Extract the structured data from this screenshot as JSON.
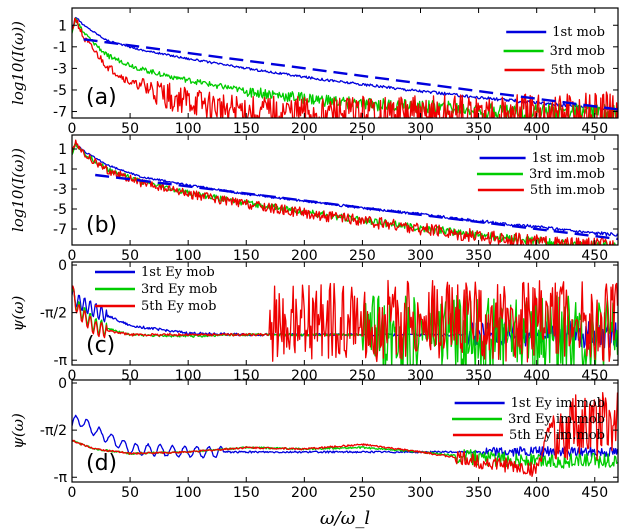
{
  "chart_data": [
    {
      "type": "line",
      "panel_label": "(a)",
      "ylabel": "log10(I(ω))",
      "xlim": [
        0,
        470
      ],
      "ylim": [
        -7.6,
        2.6
      ],
      "yticks": [
        1,
        -1,
        -3,
        -5,
        -7
      ],
      "yticklabels": [
        "1",
        "-1",
        "-3",
        "-5",
        "-7"
      ],
      "xticks": [
        0,
        50,
        100,
        150,
        200,
        250,
        300,
        350,
        400,
        450
      ],
      "xticklabels": [
        "0",
        "50",
        "100",
        "150",
        "200",
        "250",
        "300",
        "350",
        "400",
        "450"
      ],
      "legend_position": "top-right",
      "series": [
        {
          "name": "1st mob",
          "color": "#0000dd",
          "x": [
            0,
            3,
            10,
            30,
            60,
            100,
            150,
            200,
            250,
            300,
            350,
            400,
            450,
            470
          ],
          "y": [
            0.5,
            1.8,
            1.0,
            -0.4,
            -1.3,
            -2.1,
            -3.0,
            -3.8,
            -4.5,
            -5.1,
            -5.7,
            -6.2,
            -6.6,
            -6.8
          ]
        },
        {
          "name": "3rd mob",
          "color": "#00cc00",
          "x": [
            0,
            3,
            10,
            30,
            60,
            100,
            150,
            200,
            250,
            300,
            350,
            400,
            450,
            470
          ],
          "y": [
            0.3,
            1.6,
            0.3,
            -1.8,
            -3.1,
            -4.1,
            -5.1,
            -5.8,
            -6.3,
            -6.6,
            -6.8,
            -7.0,
            -7.1,
            -7.2
          ]
        },
        {
          "name": "5th mob",
          "color": "#ee0000",
          "x": [
            0,
            3,
            10,
            30,
            50,
            80,
            120,
            150,
            200,
            250,
            300,
            350,
            400,
            470
          ],
          "y": [
            0.5,
            1.7,
            -0.2,
            -2.8,
            -4.3,
            -5.5,
            -6.6,
            -7.0,
            -7.2,
            -7.3,
            -7.4,
            -7.4,
            -7.4,
            -7.4
          ]
        },
        {
          "name": "",
          "color": "#0000dd",
          "dashed": true,
          "x": [
            10,
            470
          ],
          "y": [
            -0.3,
            -6.8
          ]
        }
      ]
    },
    {
      "type": "line",
      "panel_label": "(b)",
      "ylabel": "log10(I(ω))",
      "xlim": [
        0,
        470
      ],
      "ylim": [
        -8.6,
        2.4
      ],
      "yticks": [
        1,
        -1,
        -3,
        -5,
        -7
      ],
      "yticklabels": [
        "1",
        "-1",
        "-3",
        "-5",
        "-7"
      ],
      "xticks": [
        0,
        50,
        100,
        150,
        200,
        250,
        300,
        350,
        400,
        450
      ],
      "xticklabels": [
        "0",
        "50",
        "100",
        "150",
        "200",
        "250",
        "300",
        "350",
        "400",
        "450"
      ],
      "legend_position": "top-right",
      "series": [
        {
          "name": "1st im.mob",
          "color": "#0000dd",
          "x": [
            0,
            3,
            10,
            30,
            60,
            100,
            150,
            200,
            250,
            300,
            350,
            400,
            450,
            470
          ],
          "y": [
            0.5,
            1.6,
            0.8,
            -0.6,
            -1.8,
            -2.6,
            -3.5,
            -4.2,
            -4.9,
            -5.5,
            -6.2,
            -6.8,
            -7.4,
            -7.6
          ]
        },
        {
          "name": "3rd im.mob",
          "color": "#00cc00",
          "x": [
            0,
            3,
            10,
            30,
            60,
            100,
            150,
            200,
            250,
            300,
            350,
            400,
            430,
            470
          ],
          "y": [
            0.5,
            1.6,
            0.6,
            -1.0,
            -2.3,
            -3.4,
            -4.4,
            -5.3,
            -6.1,
            -6.9,
            -7.6,
            -8.2,
            -8.6,
            -8.6
          ]
        },
        {
          "name": "5th im.mob",
          "color": "#ee0000",
          "x": [
            0,
            3,
            10,
            30,
            60,
            100,
            150,
            200,
            250,
            300,
            350,
            400,
            430,
            470
          ],
          "y": [
            0.5,
            1.6,
            0.5,
            -1.1,
            -2.4,
            -3.5,
            -4.5,
            -5.4,
            -6.2,
            -7.0,
            -7.7,
            -8.3,
            -8.6,
            -8.6
          ]
        },
        {
          "name": "",
          "color": "#0000dd",
          "dashed": true,
          "x": [
            20,
            470
          ],
          "y": [
            -1.6,
            -8.0
          ]
        }
      ]
    },
    {
      "type": "line",
      "panel_label": "(c)",
      "ylabel": "ψ(ω)",
      "xlim": [
        0,
        470
      ],
      "ylim": [
        -3.3,
        0.1
      ],
      "yticks": [
        0,
        -1.5708,
        -3.1416
      ],
      "yticklabels": [
        "0",
        "-π/2",
        "-π"
      ],
      "xticks": [
        0,
        50,
        100,
        150,
        200,
        250,
        300,
        350,
        400,
        450
      ],
      "xticklabels": [
        "0",
        "50",
        "100",
        "150",
        "200",
        "250",
        "300",
        "350",
        "400",
        "450"
      ],
      "legend_position": "top-left",
      "series": [
        {
          "name": "1st Ey mob",
          "color": "#0000dd",
          "x": [
            0,
            5,
            20,
            50,
            100,
            150,
            200,
            250,
            300,
            350,
            400,
            450,
            470
          ],
          "y": [
            -1.0,
            -1.2,
            -1.5,
            -2.0,
            -2.25,
            -2.3,
            -2.3,
            -2.3,
            -2.3,
            -2.3,
            -2.3,
            -2.3,
            -2.3
          ]
        },
        {
          "name": "3rd Ey mob",
          "color": "#00cc00",
          "x": [
            0,
            5,
            20,
            50,
            100,
            150,
            200,
            250,
            300,
            350,
            400,
            450,
            470
          ],
          "y": [
            -0.9,
            -1.4,
            -2.0,
            -2.3,
            -2.35,
            -2.3,
            -2.3,
            -2.3,
            -2.3,
            -2.3,
            -2.3,
            -2.3,
            -2.3
          ]
        },
        {
          "name": "5th Ey mob",
          "color": "#ee0000",
          "x": [
            0,
            5,
            20,
            50,
            100,
            150,
            200,
            250,
            300,
            350,
            400,
            450,
            470
          ],
          "y": [
            -0.8,
            -1.5,
            -2.1,
            -2.3,
            -2.3,
            -2.3,
            -2.3,
            -2.3,
            -2.3,
            -2.3,
            -2.3,
            -2.3,
            -2.3
          ]
        }
      ]
    },
    {
      "type": "line",
      "panel_label": "(d)",
      "ylabel": "ψ(ω)",
      "xlim": [
        0,
        470
      ],
      "ylim": [
        -3.3,
        0.1
      ],
      "yticks": [
        0,
        -1.5708,
        -3.1416
      ],
      "yticklabels": [
        "0",
        "-π/2",
        "-π"
      ],
      "xticks": [
        0,
        50,
        100,
        150,
        200,
        250,
        300,
        350,
        400,
        450
      ],
      "xticklabels": [
        "0",
        "50",
        "100",
        "150",
        "200",
        "250",
        "300",
        "350",
        "400",
        "450"
      ],
      "xlabel": "ω/ω_l",
      "legend_position": "top-right",
      "series": [
        {
          "name": "1st Ey im.mob",
          "color": "#0000dd",
          "x": [
            0,
            5,
            20,
            50,
            100,
            150,
            200,
            250,
            300,
            350,
            400,
            450,
            470
          ],
          "y": [
            -1.4,
            -1.2,
            -1.6,
            -2.2,
            -2.3,
            -2.3,
            -2.3,
            -2.3,
            -2.3,
            -2.3,
            -2.3,
            -2.3,
            -2.3
          ]
        },
        {
          "name": "3rd Ey im.mob",
          "color": "#00cc00",
          "x": [
            0,
            5,
            20,
            50,
            100,
            150,
            200,
            250,
            300,
            350,
            400,
            450,
            470
          ],
          "y": [
            -1.9,
            -2.0,
            -2.2,
            -2.35,
            -2.3,
            -2.15,
            -2.2,
            -2.15,
            -2.3,
            -2.5,
            -2.6,
            -2.6,
            -2.6
          ]
        },
        {
          "name": "5th Ey im.mob",
          "color": "#ee0000",
          "x": [
            0,
            5,
            20,
            50,
            100,
            150,
            200,
            250,
            300,
            350,
            400,
            420,
            450,
            470
          ],
          "y": [
            -1.9,
            -2.0,
            -2.2,
            -2.35,
            -2.3,
            -2.15,
            -2.2,
            -2.05,
            -2.3,
            -2.6,
            -2.9,
            -0.5,
            -1.0,
            -1.2
          ]
        }
      ]
    }
  ]
}
